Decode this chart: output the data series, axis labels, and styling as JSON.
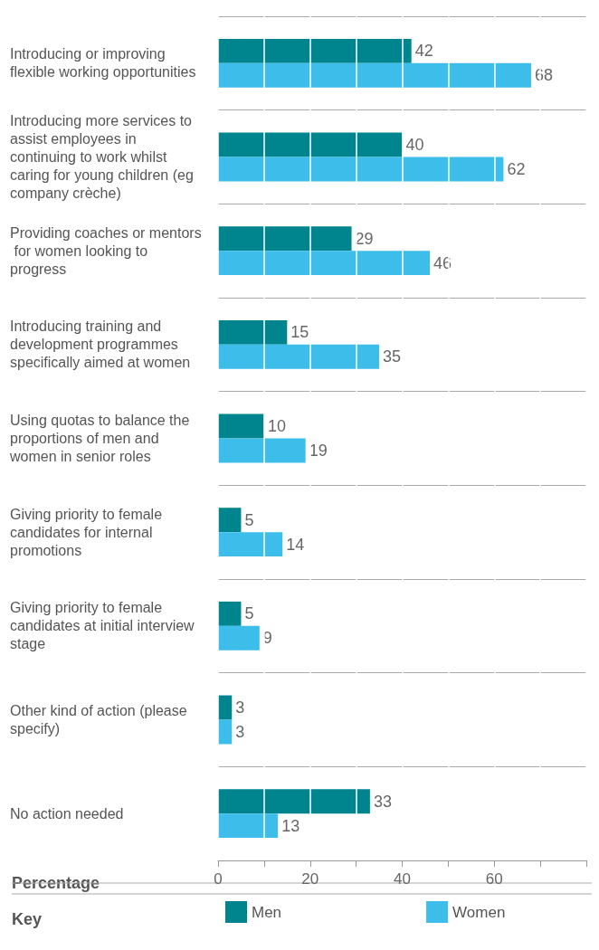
{
  "chart_data": {
    "type": "bar",
    "orientation": "horizontal",
    "categories": [
      "Introducing or improving flexible working opportunities",
      "Introducing more services to assist employees in continuing to work whilst caring for young children (eg company crèche)",
      "Providing coaches or mentors for women looking to progress",
      "Introducing training and development programmes specifically aimed at women",
      "Using quotas to balance the proportions of men and women in senior roles",
      "Giving priority to female candidates for internal promotions",
      "Giving priority to female candidates at initial interview stage",
      "Other kind of action (please specify)",
      "No action needed"
    ],
    "series": [
      {
        "name": "Men",
        "color": "#00858f",
        "values": [
          42,
          40,
          29,
          15,
          10,
          5,
          5,
          3,
          33
        ]
      },
      {
        "name": "Women",
        "color": "#3dbde9",
        "values": [
          68,
          62,
          46,
          35,
          19,
          14,
          9,
          3,
          13
        ]
      }
    ],
    "xlabel": "Percentage",
    "legend_title": "Key",
    "legend": "bottom",
    "xlim": [
      0,
      80
    ],
    "xticks": [
      0,
      {
        "value": 10,
        "label": null
      },
      20,
      {
        "value": 30,
        "label": null
      },
      40,
      {
        "value": 50,
        "label": null
      },
      60,
      {
        "value": 70,
        "label": null
      },
      {
        "value": 80,
        "label": null
      }
    ],
    "grid": true,
    "data_labels": true
  }
}
